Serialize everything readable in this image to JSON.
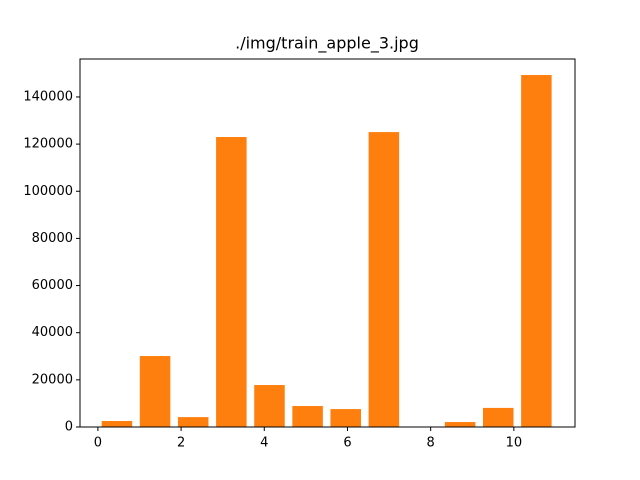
{
  "chart_data": {
    "type": "histogram",
    "title": "./img/train_apple_3.jpg",
    "bins": [
      0,
      0.9167,
      1.8333,
      2.75,
      3.6667,
      4.5833,
      5.5,
      6.4167,
      7.3333,
      8.25,
      9.1667,
      10.0833,
      11
    ],
    "values": [
      2550,
      30100,
      4200,
      123000,
      17800,
      8900,
      7600,
      125100,
      0,
      2100,
      8100,
      149300
    ],
    "rwidth": 0.8,
    "color": "#ff7f0e",
    "xlim": [
      -0.43,
      11.47
    ],
    "xticks": [
      0,
      2,
      4,
      6,
      8,
      10
    ],
    "ylim": [
      0,
      156100
    ],
    "yticks": [
      0,
      20000,
      40000,
      60000,
      80000,
      100000,
      120000,
      140000
    ],
    "grid": false
  }
}
